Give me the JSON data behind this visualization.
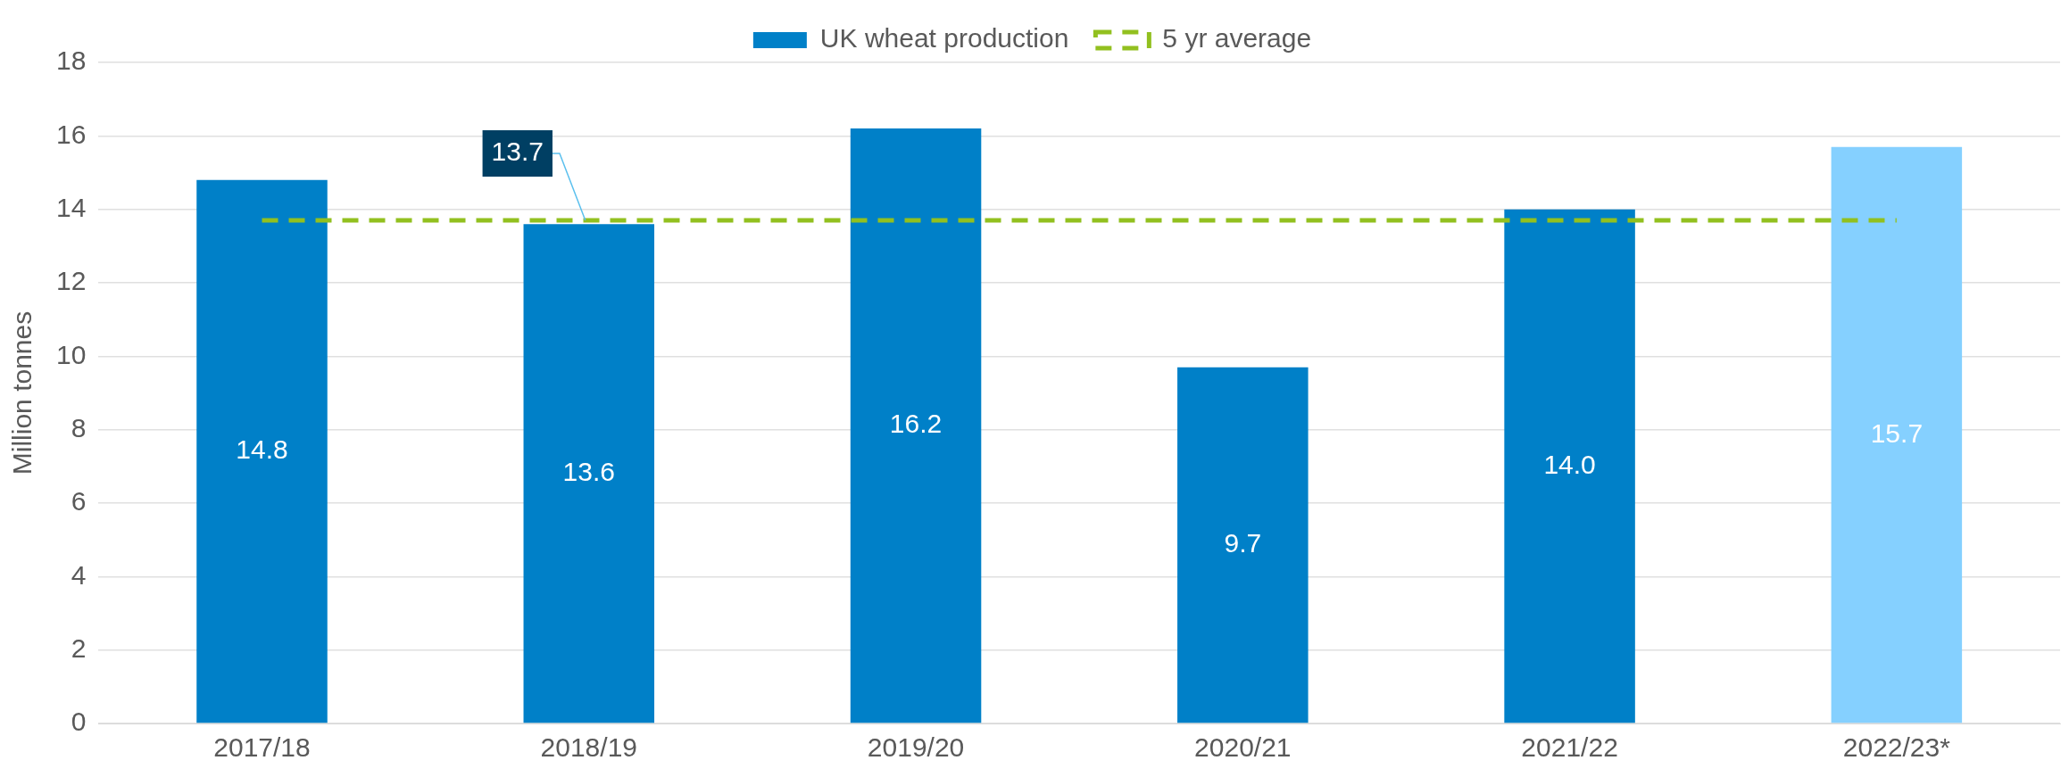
{
  "chart_data": {
    "type": "bar",
    "ylabel": "Million tonnes",
    "categories": [
      "2017/18",
      "2018/19",
      "2019/20",
      "2020/21",
      "2021/22",
      "2022/23*"
    ],
    "series": [
      {
        "name": "UK wheat production",
        "values": [
          14.8,
          13.6,
          16.2,
          9.7,
          14.0,
          15.7
        ],
        "colors": [
          "#0080c8",
          "#0080c8",
          "#0080c8",
          "#0080c8",
          "#0080c8",
          "#85d0ff"
        ],
        "value_labels": [
          "14.8",
          "13.6",
          "16.2",
          "9.7",
          "14.0",
          "15.7"
        ]
      },
      {
        "name": "5 yr average",
        "type": "line",
        "color": "#92c01f",
        "line_style": "dashed",
        "values": [
          13.7,
          13.7,
          13.7,
          13.7,
          13.7,
          13.7
        ]
      }
    ],
    "annotations": [
      {
        "text": "13.7",
        "x": "2018/19",
        "y": 13.7
      }
    ],
    "ylim": [
      0,
      18
    ],
    "yticks": [
      0,
      2,
      4,
      6,
      8,
      10,
      12,
      14,
      16,
      18
    ],
    "grid": "y",
    "legend": "top",
    "marker": "none"
  }
}
